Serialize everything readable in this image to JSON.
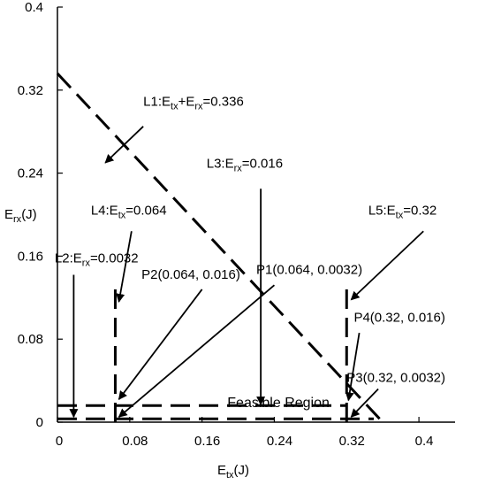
{
  "chart_data": {
    "type": "line",
    "xlabel": {
      "base": "E",
      "sub": "tx",
      "unit": "(J)"
    },
    "ylabel": {
      "base": "E",
      "sub": "rx",
      "unit": "(J)"
    },
    "xlim": [
      0,
      0.44
    ],
    "ylim": [
      0,
      0.4
    ],
    "x_ticks": [
      0,
      0.08,
      0.16,
      0.24,
      0.32,
      0.4
    ],
    "x_tick_labels": [
      "0",
      "0.08",
      "0.16",
      "0.24",
      "0.32",
      "0.4"
    ],
    "y_ticks": [
      0,
      0.08,
      0.16,
      0.24,
      0.32,
      0.4
    ],
    "y_tick_labels": [
      "0",
      "0.08",
      "0.16",
      "0.24",
      "0.32",
      "0.4"
    ],
    "lines": [
      {
        "id": "L1",
        "kind": "diagonal",
        "sum": 0.336,
        "x_range": [
          0,
          0.36
        ]
      },
      {
        "id": "L2",
        "kind": "horizontal",
        "y": 0.0032,
        "x_range": [
          0,
          0.35
        ]
      },
      {
        "id": "L3",
        "kind": "horizontal",
        "y": 0.016,
        "x_range": [
          0,
          0.32
        ]
      },
      {
        "id": "L4",
        "kind": "vertical",
        "x": 0.064,
        "y_range": [
          0,
          0.13
        ]
      },
      {
        "id": "L5",
        "kind": "vertical",
        "x": 0.32,
        "y_range": [
          0,
          0.13
        ]
      }
    ],
    "annotations": [
      {
        "id": "L1",
        "text_parts": [
          [
            "L1:E",
            ""
          ],
          [
            "tx",
            "sub"
          ],
          [
            "+E",
            ""
          ],
          [
            "rx",
            "sub"
          ],
          [
            "=0.336",
            ""
          ]
        ],
        "label_at": [
          0.095,
          0.305
        ],
        "arrow_from": [
          0.095,
          0.285
        ],
        "arrow_to": [
          0.053,
          0.25
        ]
      },
      {
        "id": "L3",
        "text_parts": [
          [
            "L3:E",
            ""
          ],
          [
            "rx",
            "sub"
          ],
          [
            "=0.016",
            ""
          ]
        ],
        "label_at": [
          0.165,
          0.245
        ],
        "arrow_from": [
          0.225,
          0.225
        ],
        "arrow_to": [
          0.225,
          0.017
        ]
      },
      {
        "id": "L4",
        "text_parts": [
          [
            "L4:E",
            ""
          ],
          [
            "tx",
            "sub"
          ],
          [
            "=0.064",
            ""
          ]
        ],
        "label_at": [
          0.037,
          0.2
        ],
        "arrow_from": [
          0.082,
          0.184
        ],
        "arrow_to": [
          0.068,
          0.116
        ]
      },
      {
        "id": "L5",
        "text_parts": [
          [
            "L5:E",
            ""
          ],
          [
            "tx",
            "sub"
          ],
          [
            "=0.32",
            ""
          ]
        ],
        "label_at": [
          0.344,
          0.2
        ],
        "arrow_from": [
          0.405,
          0.184
        ],
        "arrow_to": [
          0.325,
          0.118
        ]
      },
      {
        "id": "L2",
        "text_parts": [
          [
            "L2:E",
            ""
          ],
          [
            "rx",
            "sub"
          ],
          [
            "=0.0032",
            ""
          ]
        ],
        "label_at": [
          -0.003,
          0.154
        ],
        "arrow_from": [
          0.018,
          0.142
        ],
        "arrow_to": [
          0.018,
          0.005
        ]
      },
      {
        "id": "P2",
        "text_parts": [
          [
            "P2(0.064, 0.016)",
            ""
          ]
        ],
        "label_at": [
          0.093,
          0.138
        ],
        "arrow_from": [
          0.16,
          0.128
        ],
        "arrow_to": [
          0.068,
          0.022
        ]
      },
      {
        "id": "P1",
        "text_parts": [
          [
            "P1(0.064, 0.0032)",
            ""
          ]
        ],
        "label_at": [
          0.22,
          0.143
        ],
        "arrow_from": [
          0.24,
          0.132
        ],
        "arrow_to": [
          0.068,
          0.005
        ]
      },
      {
        "id": "P4",
        "text_parts": [
          [
            "P4(0.32, 0.016)",
            ""
          ]
        ],
        "label_at": [
          0.328,
          0.097
        ],
        "arrow_from": [
          0.334,
          0.086
        ],
        "arrow_to": [
          0.322,
          0.021
        ]
      },
      {
        "id": "P3",
        "text_parts": [
          [
            "P3(0.32, 0.0032)",
            ""
          ]
        ],
        "label_at": [
          0.32,
          0.039
        ],
        "arrow_from": [
          0.355,
          0.032
        ],
        "arrow_to": [
          0.325,
          0.005
        ]
      }
    ],
    "region_label": {
      "text": "Feasible Region",
      "at": [
        0.188,
        0.006
      ]
    },
    "tick_labels_ids": [
      "0",
      "0.08",
      "0.16",
      "0.24",
      "0.32",
      "0.4"
    ]
  }
}
